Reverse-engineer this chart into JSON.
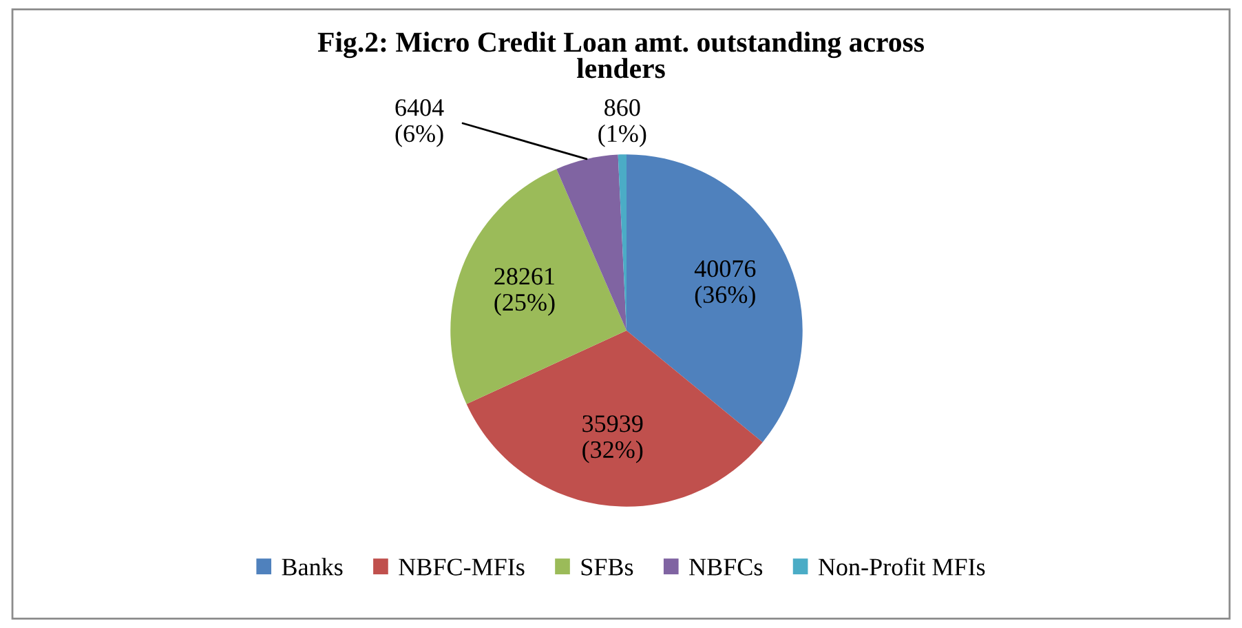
{
  "chart_data": {
    "type": "pie",
    "title": "Fig.2: Micro Credit Loan amt. outstanding across\nlenders",
    "categories": [
      "Banks",
      "NBFC-MFIs",
      "SFBs",
      "NBFCs",
      "Non-Profit MFIs"
    ],
    "values": [
      40076,
      35939,
      28261,
      6404,
      860
    ],
    "value_labels": [
      "40076\n(36%)",
      "35939\n(32%)",
      "28261\n(25%)",
      "6404\n(6%)",
      "860\n(1%)"
    ],
    "colors": [
      "#4f81bd",
      "#c0504d",
      "#9bbb59",
      "#8064a2",
      "#4bacc6"
    ],
    "legend": "bottom"
  }
}
